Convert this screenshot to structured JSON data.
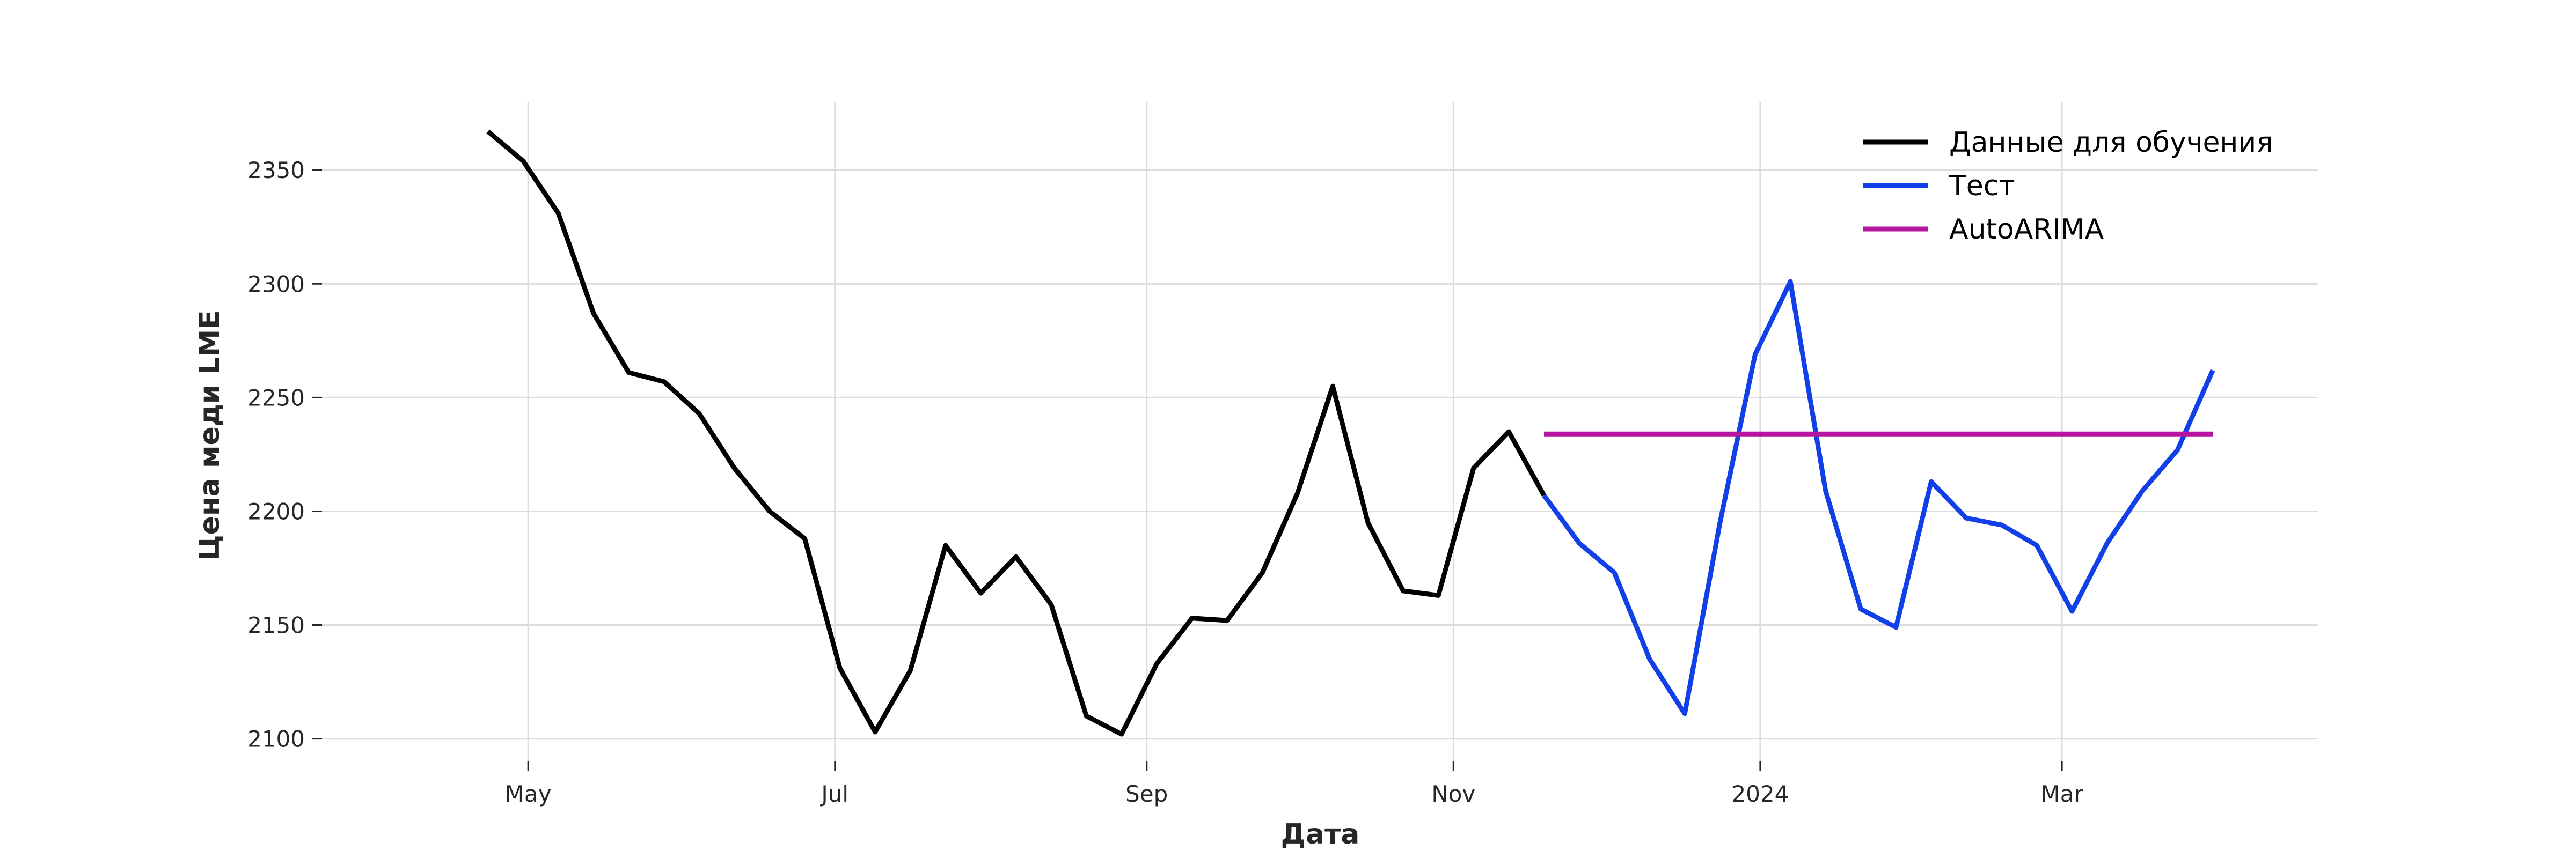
{
  "chart_data": {
    "type": "line",
    "title": "",
    "xlabel": "Дата",
    "ylabel": "Цена меди LME",
    "grid": true,
    "legend_position": "top-right",
    "x_type": "date",
    "xlim": [
      "2023-03-21",
      "2024-04-21"
    ],
    "ylim": [
      2090,
      2380
    ],
    "y_ticks": [
      2100,
      2150,
      2200,
      2250,
      2300,
      2350
    ],
    "x_ticks": [
      {
        "date": "2023-05-01",
        "label": "May"
      },
      {
        "date": "2023-07-01",
        "label": "Jul"
      },
      {
        "date": "2023-09-01",
        "label": "Sep"
      },
      {
        "date": "2023-11-01",
        "label": "Nov"
      },
      {
        "date": "2024-01-01",
        "label": "2024"
      },
      {
        "date": "2024-03-01",
        "label": "Mar"
      }
    ],
    "series": [
      {
        "name": "Данные для обучения",
        "color": "#000000",
        "x": [
          "2023-04-23",
          "2023-04-30",
          "2023-05-07",
          "2023-05-14",
          "2023-05-21",
          "2023-05-28",
          "2023-06-04",
          "2023-06-11",
          "2023-06-18",
          "2023-06-25",
          "2023-07-02",
          "2023-07-09",
          "2023-07-16",
          "2023-07-23",
          "2023-07-30",
          "2023-08-06",
          "2023-08-13",
          "2023-08-20",
          "2023-08-27",
          "2023-09-03",
          "2023-09-10",
          "2023-09-17",
          "2023-09-24",
          "2023-10-01",
          "2023-10-08",
          "2023-10-15",
          "2023-10-22",
          "2023-10-29",
          "2023-11-05",
          "2023-11-12",
          "2023-11-19"
        ],
        "values": [
          2367,
          2354,
          2331,
          2287,
          2261,
          2257,
          2243,
          2219,
          2200,
          2188,
          2131,
          2103,
          2130,
          2185,
          2164,
          2180,
          2159,
          2110,
          2102,
          2133,
          2153,
          2152,
          2173,
          2208,
          2255,
          2195,
          2165,
          2163,
          2219,
          2235,
          2207
        ]
      },
      {
        "name": "Тест",
        "color": "#1140e8",
        "x": [
          "2023-11-19",
          "2023-11-26",
          "2023-12-03",
          "2023-12-10",
          "2023-12-17",
          "2023-12-24",
          "2023-12-31",
          "2024-01-07",
          "2024-01-14",
          "2024-01-21",
          "2024-01-28",
          "2024-02-04",
          "2024-02-11",
          "2024-02-18",
          "2024-02-25",
          "2024-03-03",
          "2024-03-10",
          "2024-03-17",
          "2024-03-24",
          "2024-03-31"
        ],
        "values": [
          2207,
          2186,
          2173,
          2135,
          2111,
          2195,
          2269,
          2301,
          2209,
          2157,
          2149,
          2213,
          2197,
          2194,
          2185,
          2156,
          2186,
          2209,
          2227,
          2262
        ]
      },
      {
        "name": "AutoARIMA",
        "color": "#b5149f",
        "x": [
          "2023-11-19",
          "2024-03-31"
        ],
        "values": [
          2234,
          2234
        ]
      }
    ]
  }
}
